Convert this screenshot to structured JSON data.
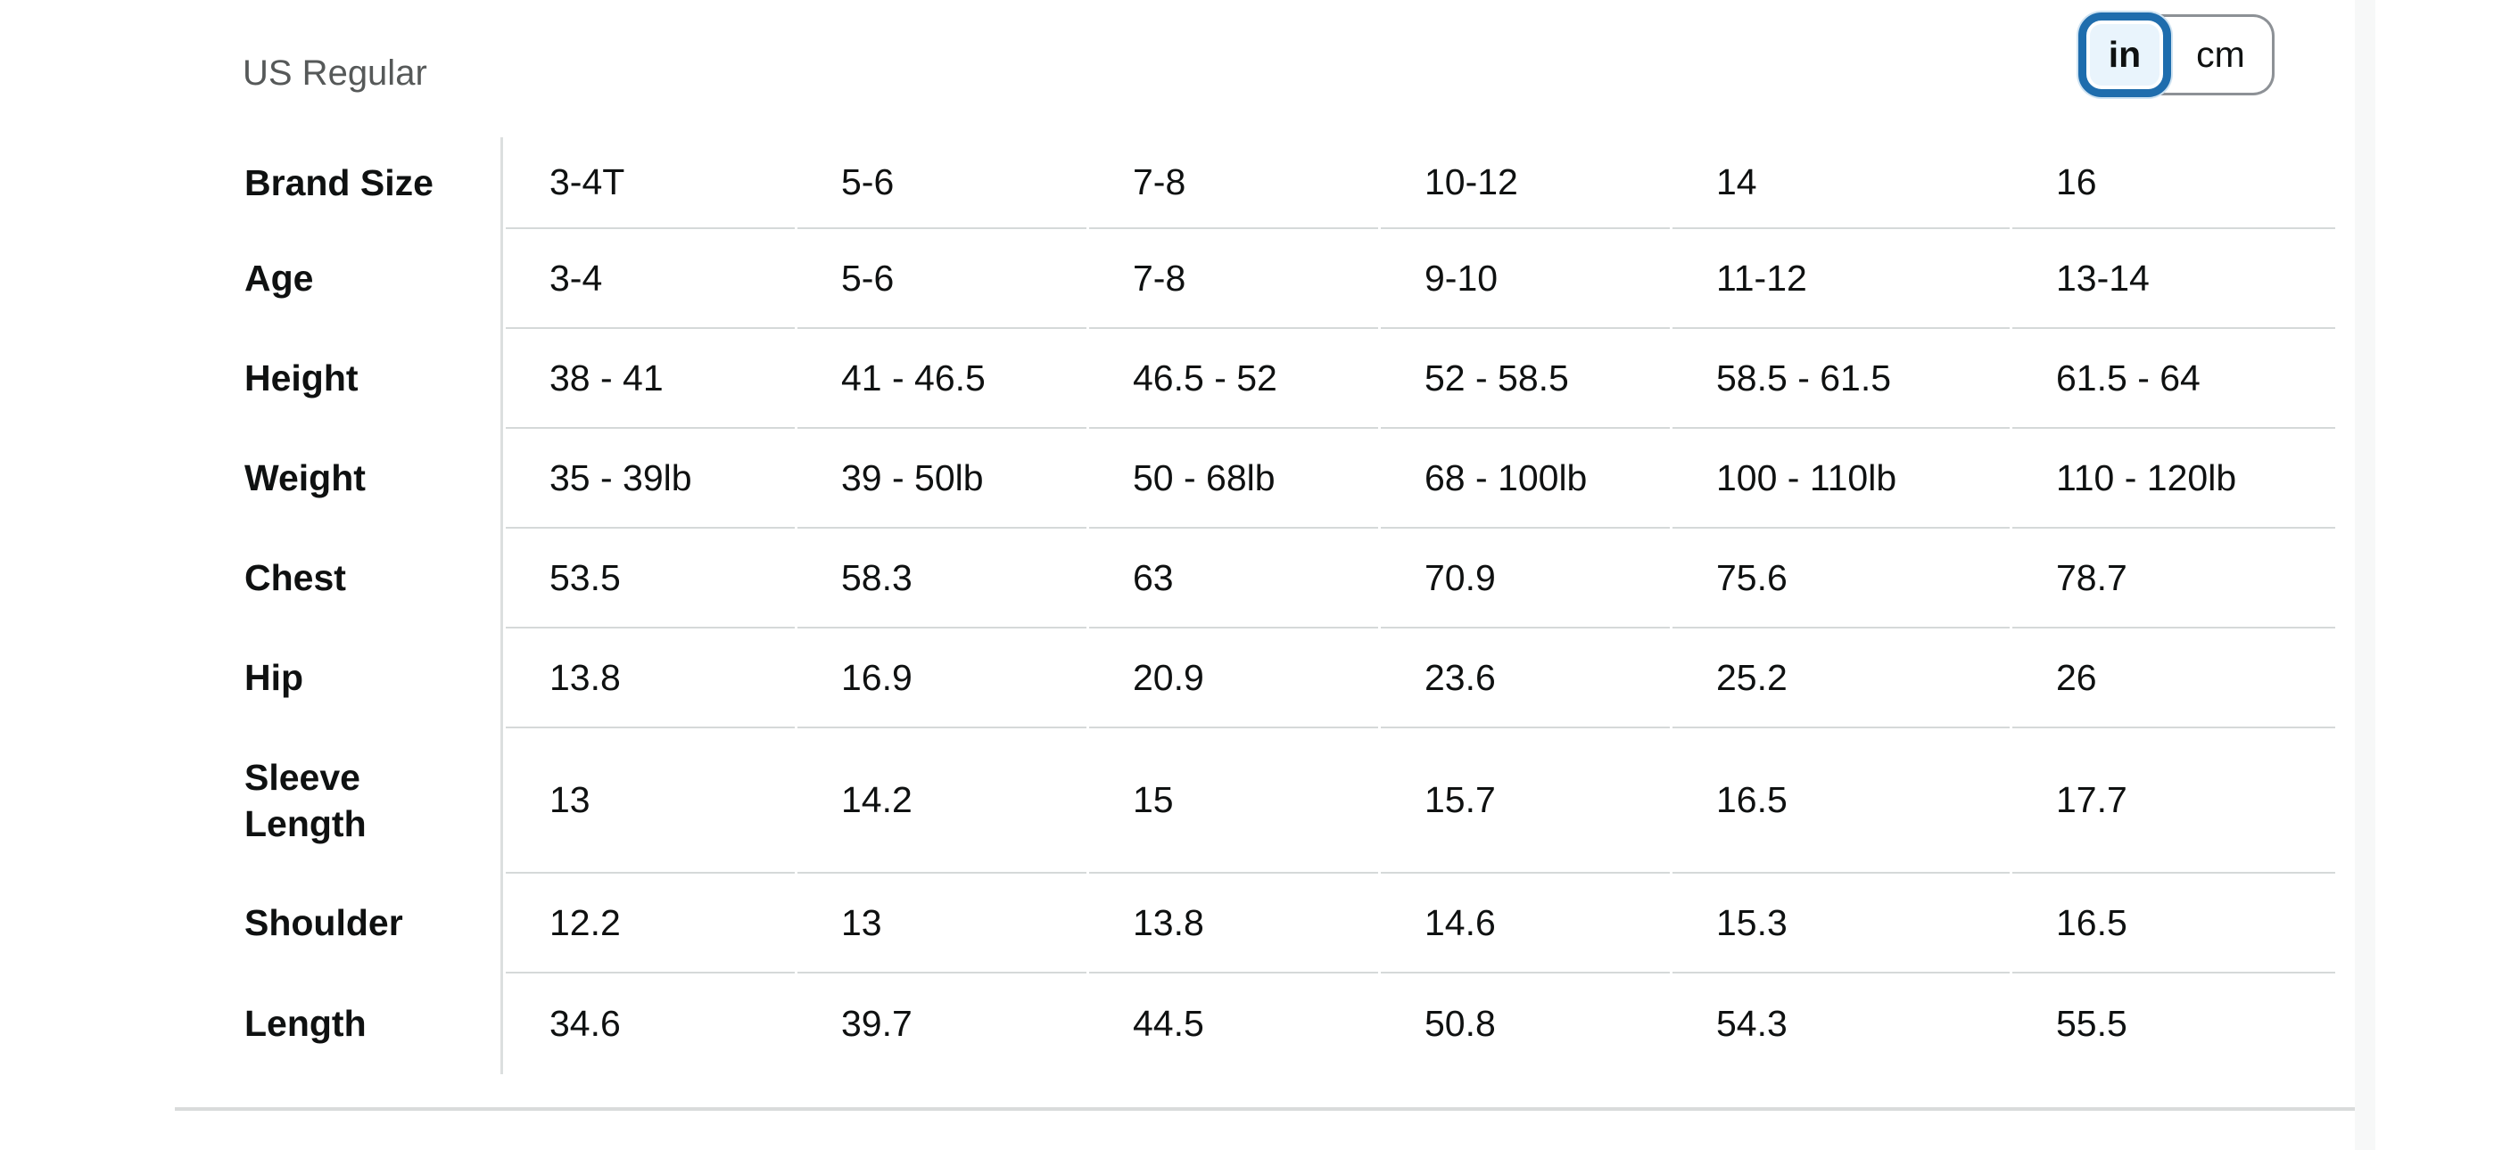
{
  "page": {
    "unit_label": "US Regular"
  },
  "unit_toggle": {
    "options": [
      {
        "label": "in",
        "selected": true
      },
      {
        "label": "cm",
        "selected": false
      }
    ]
  },
  "size_table": {
    "rows": [
      {
        "label": "Brand Size",
        "values": [
          "3-4T",
          "5-6",
          "7-8",
          "10-12",
          "14",
          "16"
        ]
      },
      {
        "label": "Age",
        "values": [
          "3-4",
          "5-6",
          "7-8",
          "9-10",
          "11-12",
          "13-14"
        ]
      },
      {
        "label": "Height",
        "values": [
          "38 - 41",
          "41 - 46.5",
          "46.5 - 52",
          "52 - 58.5",
          "58.5 - 61.5",
          "61.5 - 64"
        ]
      },
      {
        "label": "Weight",
        "values": [
          "35 - 39lb",
          "39 - 50lb",
          "50 - 68lb",
          "68 - 100lb",
          "100 - 110lb",
          "110 - 120lb"
        ]
      },
      {
        "label": "Chest",
        "values": [
          "53.5",
          "58.3",
          "63",
          "70.9",
          "75.6",
          "78.7"
        ]
      },
      {
        "label": "Hip",
        "values": [
          "13.8",
          "16.9",
          "20.9",
          "23.6",
          "25.2",
          "26"
        ]
      },
      {
        "label": "Sleeve Length",
        "values": [
          "13",
          "14.2",
          "15",
          "15.7",
          "16.5",
          "17.7"
        ]
      },
      {
        "label": "Shoulder",
        "values": [
          "12.2",
          "13",
          "13.8",
          "14.6",
          "15.3",
          "16.5"
        ]
      },
      {
        "label": "Length",
        "values": [
          "34.6",
          "39.7",
          "44.5",
          "50.8",
          "54.3",
          "55.5"
        ]
      }
    ]
  },
  "colors": {
    "selected_toggle_border": "#1f6dad",
    "selected_toggle_fill": "#e9f4fc",
    "unselected_toggle_border": "#8d9196",
    "table_border": "#d5d9d9",
    "muted_text": "#565959",
    "text": "#0f1111"
  }
}
